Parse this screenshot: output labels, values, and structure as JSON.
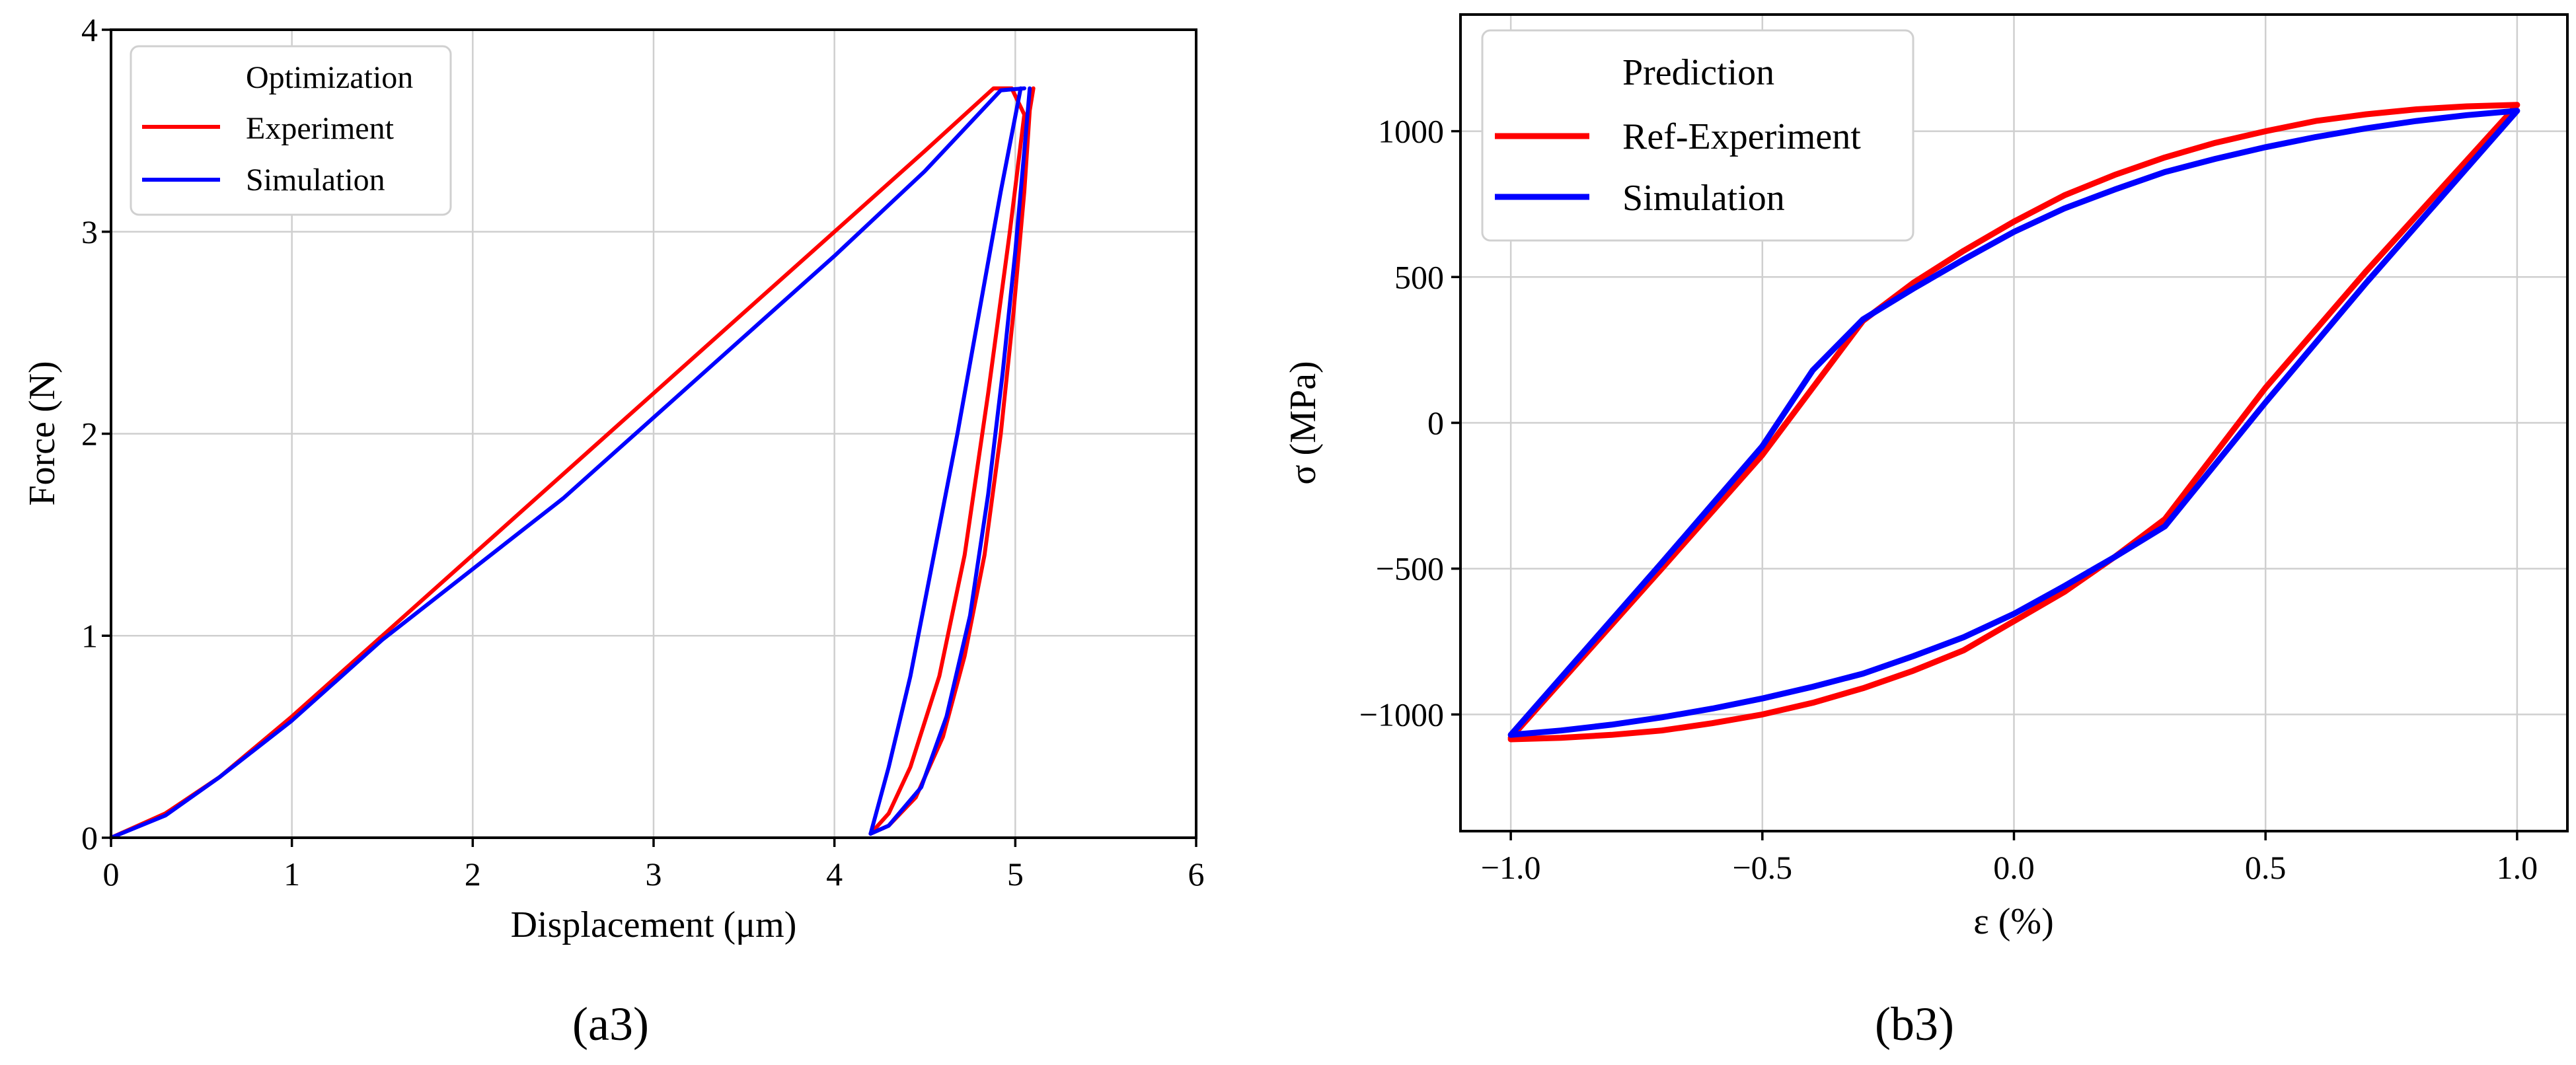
{
  "chart_data": [
    {
      "type": "line",
      "panel_label": "(a3)",
      "xlabel": "Displacement (μm)",
      "ylabel": "Force  (N)",
      "xlim": [
        0,
        6
      ],
      "ylim": [
        0,
        4
      ],
      "xticks": [
        "0",
        "1",
        "2",
        "3",
        "4",
        "5",
        "6"
      ],
      "yticks": [
        "0",
        "1",
        "2",
        "3",
        "4"
      ],
      "grid": true,
      "legend": {
        "title": "Optimization",
        "placement": "upper-left",
        "entries": [
          "Experiment",
          "Simulation"
        ]
      },
      "series": [
        {
          "name": "Experiment",
          "color": "#ff0000",
          "points": [
            [
              0,
              0
            ],
            [
              0.3,
              0.12
            ],
            [
              0.6,
              0.3
            ],
            [
              1,
              0.6
            ],
            [
              1.5,
              1.0
            ],
            [
              2,
              1.4
            ],
            [
              2.5,
              1.8
            ],
            [
              3,
              2.2
            ],
            [
              3.5,
              2.6
            ],
            [
              4,
              3.0
            ],
            [
              4.5,
              3.4
            ],
            [
              4.88,
              3.71
            ],
            [
              4.98,
              3.71
            ],
            [
              5.05,
              3.58
            ],
            [
              4.97,
              3.0
            ],
            [
              4.85,
              2.2
            ],
            [
              4.72,
              1.4
            ],
            [
              4.58,
              0.8
            ],
            [
              4.42,
              0.35
            ],
            [
              4.3,
              0.12
            ],
            [
              4.2,
              0.02
            ]
          ]
        },
        {
          "name": "Experiment",
          "color": "#ff0000",
          "points": [
            [
              5.1,
              3.71
            ],
            [
              5.08,
              3.6
            ],
            [
              5.05,
              3.2
            ],
            [
              4.99,
              2.6
            ],
            [
              4.92,
              2.0
            ],
            [
              4.83,
              1.4
            ],
            [
              4.72,
              0.9
            ],
            [
              4.6,
              0.5
            ],
            [
              4.45,
              0.2
            ],
            [
              4.3,
              0.06
            ],
            [
              4.2,
              0.02
            ]
          ]
        },
        {
          "name": "Simulation",
          "color": "#0000ff",
          "points": [
            [
              0,
              0
            ],
            [
              0.3,
              0.11
            ],
            [
              0.6,
              0.3
            ],
            [
              1,
              0.58
            ],
            [
              1.5,
              0.98
            ],
            [
              2,
              1.33
            ],
            [
              2.5,
              1.68
            ],
            [
              3,
              2.08
            ],
            [
              3.5,
              2.48
            ],
            [
              4,
              2.88
            ],
            [
              4.5,
              3.3
            ],
            [
              4.92,
              3.7
            ],
            [
              5.05,
              3.71
            ]
          ]
        },
        {
          "name": "Simulation",
          "color": "#0000ff",
          "points": [
            [
              5.03,
              3.71
            ],
            [
              4.92,
              3.2
            ],
            [
              4.8,
              2.6
            ],
            [
              4.68,
              2.0
            ],
            [
              4.55,
              1.4
            ],
            [
              4.42,
              0.8
            ],
            [
              4.3,
              0.35
            ],
            [
              4.2,
              0.02
            ]
          ]
        },
        {
          "name": "Simulation",
          "color": "#0000ff",
          "points": [
            [
              5.08,
              3.71
            ],
            [
              5.05,
              3.4
            ],
            [
              5.0,
              2.9
            ],
            [
              4.93,
              2.3
            ],
            [
              4.85,
              1.7
            ],
            [
              4.75,
              1.1
            ],
            [
              4.62,
              0.6
            ],
            [
              4.48,
              0.25
            ],
            [
              4.3,
              0.06
            ],
            [
              4.2,
              0.02
            ]
          ]
        }
      ]
    },
    {
      "type": "line",
      "panel_label": "(b3)",
      "xlabel": "ε (%)",
      "ylabel": "σ (MPa)",
      "xlim": [
        -1.1,
        1.1
      ],
      "ylim": [
        -1400,
        1400
      ],
      "xticks": [
        "−1.0",
        "−0.5",
        "0.0",
        "0.5",
        "1.0"
      ],
      "yticks": [
        "−1000",
        "−500",
        "0",
        "500",
        "1000"
      ],
      "grid": true,
      "legend": {
        "title": "Prediction",
        "placement": "upper-left",
        "entries": [
          "Ref-Experiment",
          "Simulation"
        ]
      },
      "series": [
        {
          "name": "Ref-Experiment",
          "color": "#ff0000",
          "points": [
            [
              -1.0,
              -1080
            ],
            [
              -0.7,
              -500
            ],
            [
              -0.5,
              -110
            ],
            [
              -0.3,
              350
            ],
            [
              -0.2,
              480
            ],
            [
              -0.1,
              590
            ],
            [
              0,
              690
            ],
            [
              0.1,
              780
            ],
            [
              0.2,
              850
            ],
            [
              0.3,
              910
            ],
            [
              0.4,
              960
            ],
            [
              0.5,
              1000
            ],
            [
              0.6,
              1035
            ],
            [
              0.7,
              1058
            ],
            [
              0.8,
              1075
            ],
            [
              0.9,
              1085
            ],
            [
              1.0,
              1090
            ],
            [
              0.7,
              520
            ],
            [
              0.5,
              120
            ],
            [
              0.3,
              -330
            ],
            [
              0.2,
              -460
            ],
            [
              0.1,
              -580
            ],
            [
              0,
              -680
            ],
            [
              -0.1,
              -780
            ],
            [
              -0.2,
              -850
            ],
            [
              -0.3,
              -910
            ],
            [
              -0.4,
              -960
            ],
            [
              -0.5,
              -1000
            ],
            [
              -0.6,
              -1030
            ],
            [
              -0.7,
              -1055
            ],
            [
              -0.8,
              -1070
            ],
            [
              -0.9,
              -1080
            ],
            [
              -1.0,
              -1085
            ]
          ]
        },
        {
          "name": "Simulation",
          "color": "#0000ff",
          "points": [
            [
              -1.0,
              -1070
            ],
            [
              -0.7,
              -480
            ],
            [
              -0.5,
              -80
            ],
            [
              -0.4,
              180
            ],
            [
              -0.3,
              355
            ],
            [
              -0.2,
              460
            ],
            [
              -0.1,
              560
            ],
            [
              0,
              655
            ],
            [
              0.1,
              735
            ],
            [
              0.2,
              800
            ],
            [
              0.3,
              860
            ],
            [
              0.4,
              905
            ],
            [
              0.5,
              945
            ],
            [
              0.6,
              980
            ],
            [
              0.7,
              1010
            ],
            [
              0.8,
              1035
            ],
            [
              0.9,
              1055
            ],
            [
              1.0,
              1070
            ],
            [
              0.7,
              480
            ],
            [
              0.5,
              70
            ],
            [
              0.3,
              -355
            ],
            [
              0.2,
              -460
            ],
            [
              0.1,
              -560
            ],
            [
              0,
              -655
            ],
            [
              -0.1,
              -735
            ],
            [
              -0.2,
              -800
            ],
            [
              -0.3,
              -860
            ],
            [
              -0.4,
              -905
            ],
            [
              -0.5,
              -945
            ],
            [
              -0.6,
              -980
            ],
            [
              -0.7,
              -1010
            ],
            [
              -0.8,
              -1035
            ],
            [
              -0.9,
              -1055
            ],
            [
              -1.0,
              -1070
            ]
          ]
        }
      ]
    }
  ]
}
